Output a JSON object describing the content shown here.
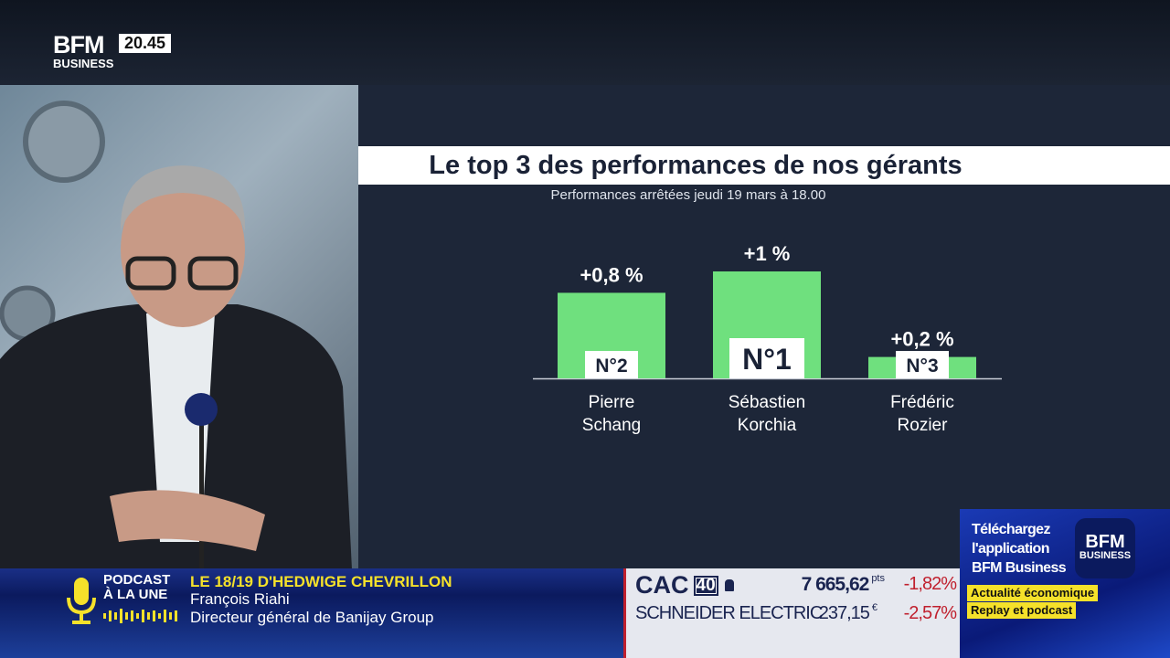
{
  "header": {
    "logo": "BFM BUSINESS",
    "clock": "20.45"
  },
  "chart_data": {
    "type": "bar",
    "title": "Le top 3 des performances de nos gérants",
    "subtitle": "Performances arrêtées jeudi 19 mars à 18.00",
    "categories": [
      "Pierre Schang",
      "Sébastien Korchia",
      "Frédéric Rozier"
    ],
    "category_lines": [
      [
        "Pierre",
        "Schang"
      ],
      [
        "Sébastien",
        "Korchia"
      ],
      [
        "Frédéric",
        "Rozier"
      ]
    ],
    "values": [
      0.8,
      1,
      0.2
    ],
    "value_labels": [
      "+0,8 %",
      "+1 %",
      "+0,2 %"
    ],
    "rank_labels": [
      "N°2",
      "N°1",
      "N°3"
    ],
    "ylim": [
      0,
      1
    ],
    "bar_color": "#6fe07e",
    "grid": false
  },
  "ticker": {
    "podcast_label": [
      "PODCAST",
      "À LA UNE"
    ],
    "show": "LE 18/19 D'HEDWIGE CHEVRILLON",
    "guest": "François Riahi",
    "role": "Directeur général de Banijay Group"
  },
  "market": {
    "index": "CAC",
    "index_num": "40",
    "index_value": "7 665,62",
    "index_unit": "pts",
    "index_change": "-1,82%",
    "stock": "SCHNEIDER ELECTRIC",
    "stock_value": "237,15",
    "stock_unit": "€",
    "stock_change": "-2,57%"
  },
  "promo": {
    "text": [
      "Téléchargez",
      "l'application",
      "BFM Business"
    ],
    "tags": [
      "Actualité économique",
      "Replay et podcast"
    ],
    "app_logo": "BFM BUSINESS"
  }
}
